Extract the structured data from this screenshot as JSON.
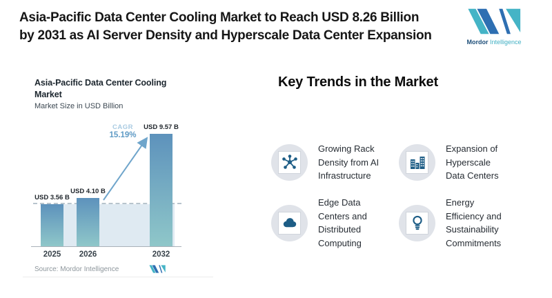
{
  "header": {
    "title": "Asia-Pacific Data Center Cooling Market to Reach USD 8.26 Billion\nby 2031 as AI Server Density and Hyperscale Data Center Expansion",
    "brand": {
      "name_primary": "Mordor",
      "name_secondary": "Intelligence"
    }
  },
  "chart_card": {
    "title": "Asia-Pacific Data Center Cooling\nMarket",
    "subtitle": "Market Size in USD Billion",
    "source": "Source: Mordor Intelligence"
  },
  "chart_data": {
    "type": "bar",
    "title": "Asia-Pacific Data Center Cooling Market",
    "subtitle": "Market Size in USD Billion",
    "categories": [
      "2025",
      "2026",
      "2032"
    ],
    "values": [
      3.56,
      4.1,
      9.57
    ],
    "value_labels": [
      "USD 3.56 B",
      "USD 4.10 B",
      "USD 9.57 B"
    ],
    "unit": "USD Billion",
    "ylim": [
      0,
      10
    ],
    "grid": "off",
    "annotations": {
      "cagr_label": "CAGR",
      "cagr_value": "15.19%",
      "dashed_baseline_at_value": 3.56
    },
    "source": "Source: Mordor Intelligence",
    "colors": {
      "bar_top": "#5d92bc",
      "bar_bottom": "#8fc7c9",
      "area": "#dfeaf2",
      "dashed": "#b7c4cd",
      "arrow": "#6fa5cb"
    }
  },
  "trends": {
    "heading": "Key Trends in the Market",
    "items": [
      {
        "icon": "network-hub-icon",
        "label": "Growing Rack\nDensity from AI\nInfrastructure"
      },
      {
        "icon": "buildings-icon",
        "label": "Expansion of\nHyperscale\nData Centers"
      },
      {
        "icon": "cloud-icon",
        "label": "Edge Data\nCenters and\nDistributed\nComputing"
      },
      {
        "icon": "lightbulb-icon",
        "label": "Energy\nEfficiency and\nSustainability\nCommitments"
      }
    ]
  },
  "brand_colors": {
    "blue": "#2e6fb2",
    "teal": "#45b4c6"
  }
}
